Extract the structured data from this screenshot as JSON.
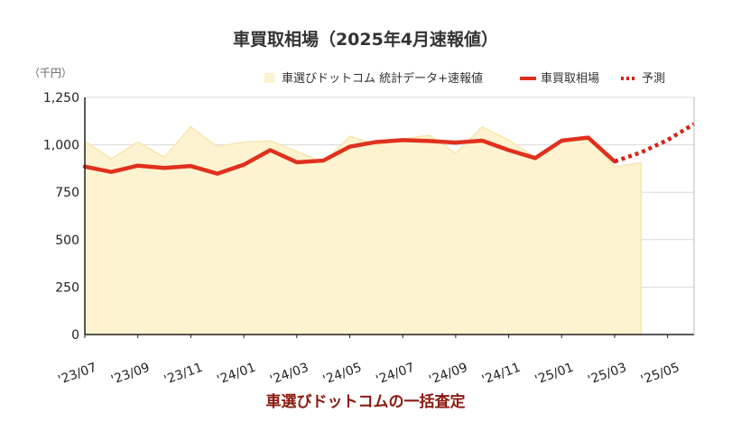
{
  "chart_data": {
    "type": "line",
    "title": "車買取相場（2025年4月速報値）",
    "unit_label": "（千円）",
    "footer": "車選びドットコムの一括査定",
    "x_tick_labels": [
      "'23/07",
      "'23/09",
      "'23/11",
      "'24/01",
      "'24/03",
      "'24/05",
      "'24/07",
      "'24/09",
      "'24/11",
      "'25/01",
      "'25/03",
      "'25/05"
    ],
    "x": [
      "2023-07",
      "2023-08",
      "2023-09",
      "2023-10",
      "2023-11",
      "2023-12",
      "2024-01",
      "2024-02",
      "2024-03",
      "2024-04",
      "2024-05",
      "2024-06",
      "2024-07",
      "2024-08",
      "2024-09",
      "2024-10",
      "2024-11",
      "2024-12",
      "2025-01",
      "2025-02",
      "2025-03",
      "2025-04",
      "2025-05",
      "2025-06"
    ],
    "ylim": [
      0,
      1250
    ],
    "y_ticks": [
      0,
      250,
      500,
      750,
      1000,
      1250
    ],
    "y_tick_labels": [
      "0",
      "250",
      "500",
      "750",
      "1,000",
      "1,250"
    ],
    "grid": true,
    "legend_position": "top-right",
    "series": [
      {
        "name": "車選びドットコム 統計データ+速報値",
        "kind": "area",
        "color": "#fdf3d0",
        "values": [
          1020,
          925,
          1015,
          935,
          1095,
          990,
          1015,
          1020,
          965,
          905,
          1045,
          1000,
          1030,
          1050,
          955,
          1095,
          1025,
          935,
          1030,
          1040,
          885,
          905,
          null,
          null
        ]
      },
      {
        "name": "車買取相場",
        "kind": "line",
        "color": "#e0301e",
        "values": [
          885,
          857,
          890,
          878,
          888,
          848,
          895,
          972,
          908,
          917,
          990,
          1015,
          1025,
          1020,
          1012,
          1022,
          972,
          930,
          1022,
          1038,
          912,
          null,
          null,
          null
        ]
      },
      {
        "name": "予測",
        "kind": "dotted",
        "color": "#d42418",
        "values": [
          null,
          null,
          null,
          null,
          null,
          null,
          null,
          null,
          null,
          null,
          null,
          null,
          null,
          null,
          null,
          null,
          null,
          null,
          null,
          null,
          912,
          960,
          1025,
          1110
        ]
      }
    ]
  }
}
